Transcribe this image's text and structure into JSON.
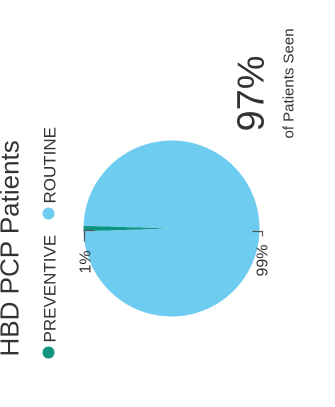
{
  "chart_data": {
    "type": "pie",
    "title": "HBD PCP Patients",
    "legend": {
      "placement": "top",
      "entries": [
        {
          "label": "PREVENTIVE",
          "color": "#0e9480"
        },
        {
          "label": "ROUTINE",
          "color": "#6dccf0"
        }
      ]
    },
    "slices": [
      {
        "name": "PREVENTIVE",
        "value": 1,
        "label": "1%",
        "color": "#0e9480"
      },
      {
        "name": "ROUTINE",
        "value": 99,
        "label": "99%",
        "color": "#6dccf0"
      }
    ],
    "orientation": "rotated 90° counter-clockwise"
  },
  "stat": {
    "value": "97%",
    "caption": "of Patients Seen"
  }
}
